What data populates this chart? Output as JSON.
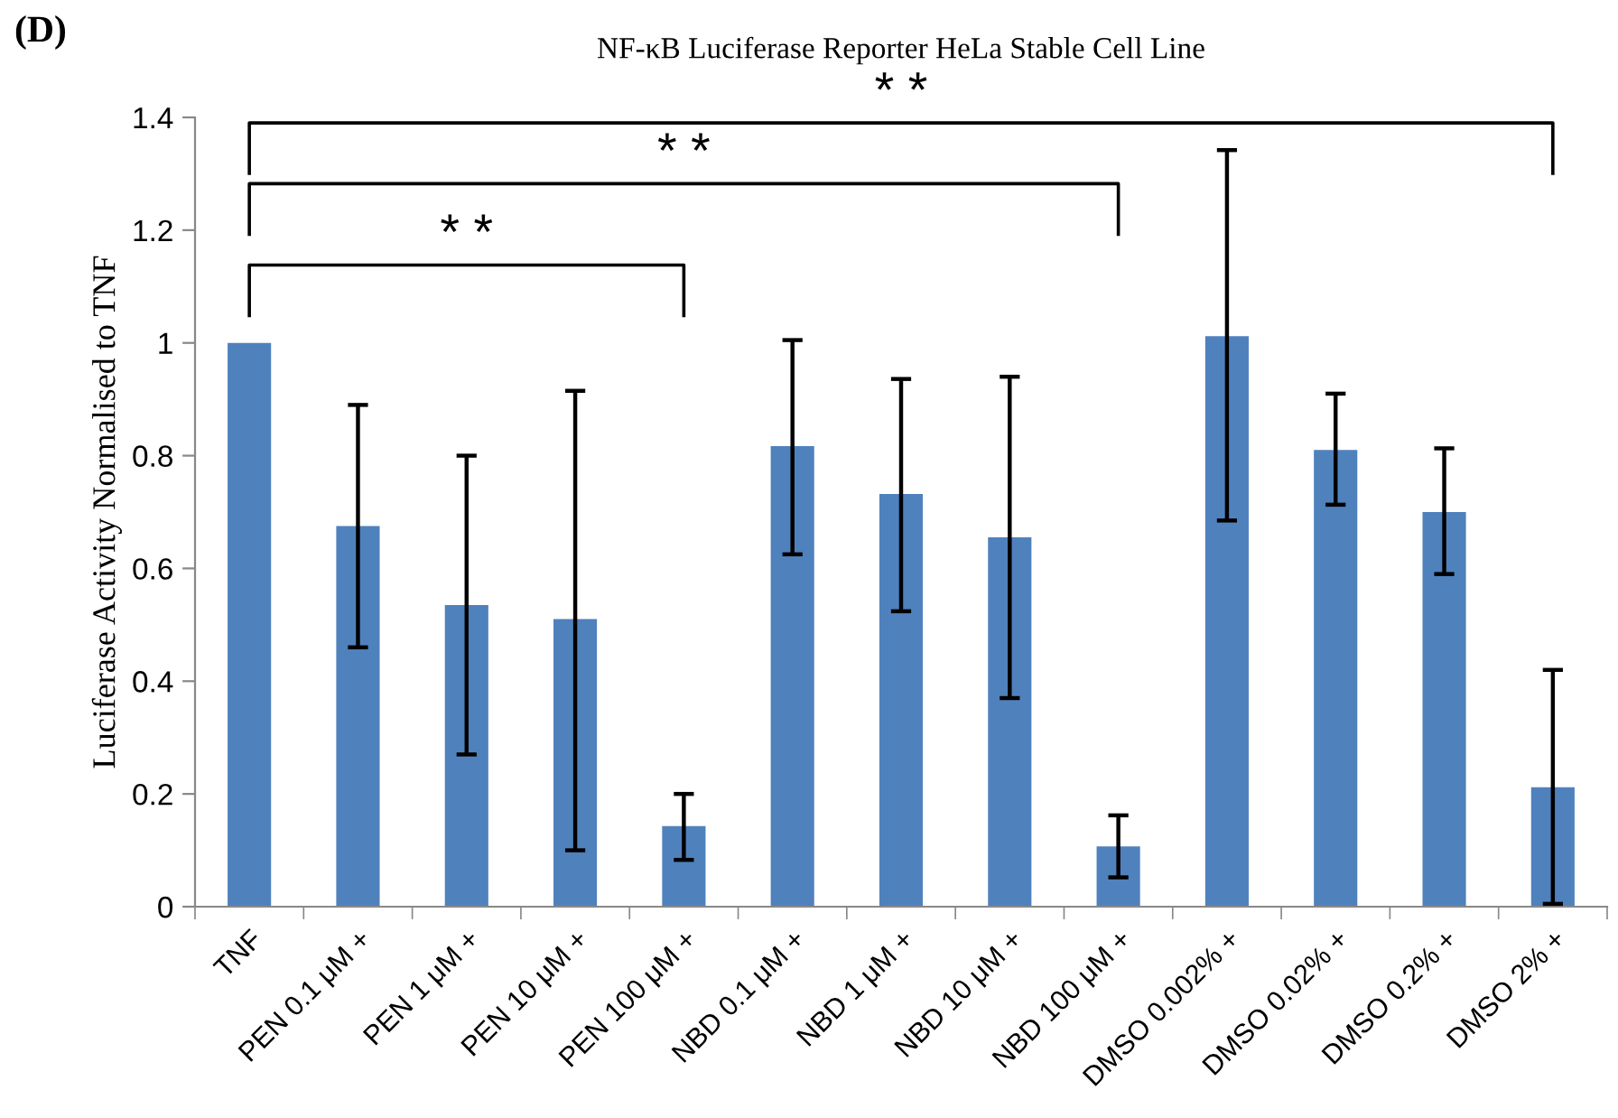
{
  "chart_data": {
    "type": "bar",
    "title": "NF-κB Luciferase Reporter HeLa Stable Cell Line",
    "ylabel": "Luciferase Activity Normalised to TNF",
    "categories": [
      "TNF",
      "PEN 0.1 μM +",
      "PEN 1 μM +",
      "PEN 10 μM +",
      "PEN 100 μM +",
      "NBD 0.1 μM +",
      "NBD 1 μM +",
      "NBD 10 μM +",
      "NBD 100 μM +",
      "DMSO 0.002% +",
      "DMSO 0.02% +",
      "DMSO 0.2% +",
      "DMSO 2% +"
    ],
    "values": [
      1.0,
      0.675,
      0.535,
      0.51,
      0.143,
      0.817,
      0.732,
      0.655,
      0.107,
      1.012,
      0.81,
      0.7,
      0.212
    ],
    "errors": [
      null,
      [
        0.46,
        0.89
      ],
      [
        0.27,
        0.8
      ],
      [
        0.1,
        0.915
      ],
      [
        0.083,
        0.2
      ],
      [
        0.625,
        1.005
      ],
      [
        0.524,
        0.936
      ],
      [
        0.37,
        0.94
      ],
      [
        0.052,
        0.162
      ],
      [
        0.685,
        1.342
      ],
      [
        0.713,
        0.91
      ],
      [
        0.59,
        0.813
      ],
      [
        0.005,
        0.42
      ]
    ],
    "color": "#4f81bd",
    "ylim": [
      0,
      1.4
    ],
    "yticks": [
      0,
      0.2,
      0.4,
      0.6,
      0.8,
      1,
      1.2,
      1.4
    ],
    "grid": false,
    "annotations": [
      "(D)",
      "* *",
      "* *",
      "* *"
    ]
  }
}
